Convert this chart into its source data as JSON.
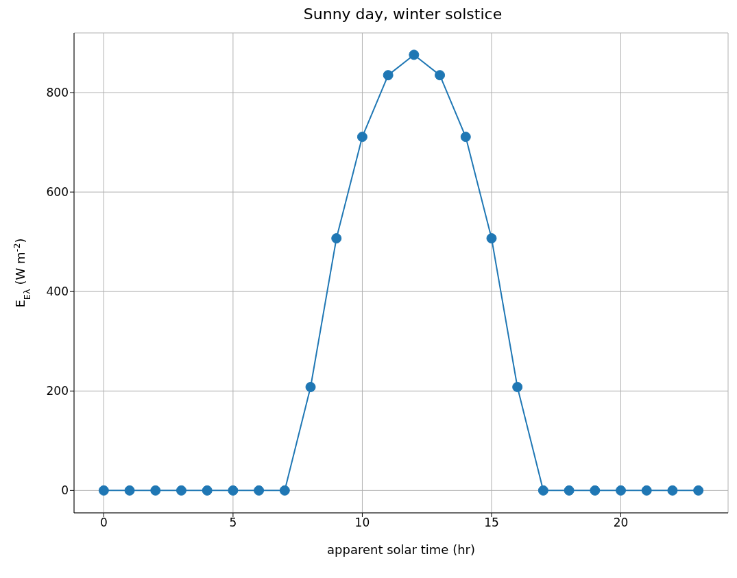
{
  "chart_data": {
    "type": "line",
    "title": "Sunny day, winter solstice",
    "xlabel": "apparent solar time (hr)",
    "ylabel": "E$_{Eλ}$ (W m$^{-2}$)",
    "x": [
      0,
      1,
      2,
      3,
      4,
      5,
      6,
      7,
      8,
      9,
      10,
      11,
      12,
      13,
      14,
      15,
      16,
      17,
      18,
      19,
      20,
      21,
      22,
      23
    ],
    "series": [
      {
        "color": "#1f77b4",
        "values": [
          0,
          0,
          0,
          0,
          0,
          0,
          0,
          0,
          208,
          507,
          711,
          835,
          876,
          835,
          711,
          507,
          208,
          0,
          0,
          0,
          0,
          0,
          0,
          0
        ]
      }
    ],
    "xlim": [
      -1.15,
      24.15
    ],
    "xticks": [
      0,
      5,
      10,
      15,
      20
    ],
    "ylim": [
      -45,
      920
    ],
    "yticks": [
      0,
      200,
      400,
      600,
      800
    ],
    "grid": true,
    "legend": false,
    "marker": "circle",
    "line_style": "solid"
  }
}
